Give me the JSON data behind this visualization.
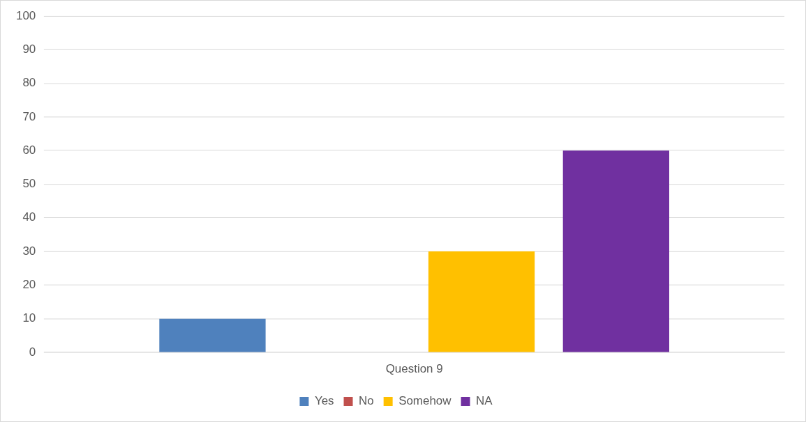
{
  "chart_data": {
    "type": "bar",
    "categories": [
      "Question 9"
    ],
    "series": [
      {
        "name": "Yes",
        "color": "#4f81bd",
        "values": [
          10
        ]
      },
      {
        "name": "No",
        "color": "#c0504d",
        "values": [
          0
        ]
      },
      {
        "name": "Somehow",
        "color": "#ffc000",
        "values": [
          30
        ]
      },
      {
        "name": "NA",
        "color": "#7030a0",
        "values": [
          60
        ]
      }
    ],
    "ylim": [
      0,
      100
    ],
    "yticks": [
      0,
      10,
      20,
      30,
      40,
      50,
      60,
      70,
      80,
      90,
      100
    ],
    "grid": "y",
    "legend": "bottom"
  }
}
